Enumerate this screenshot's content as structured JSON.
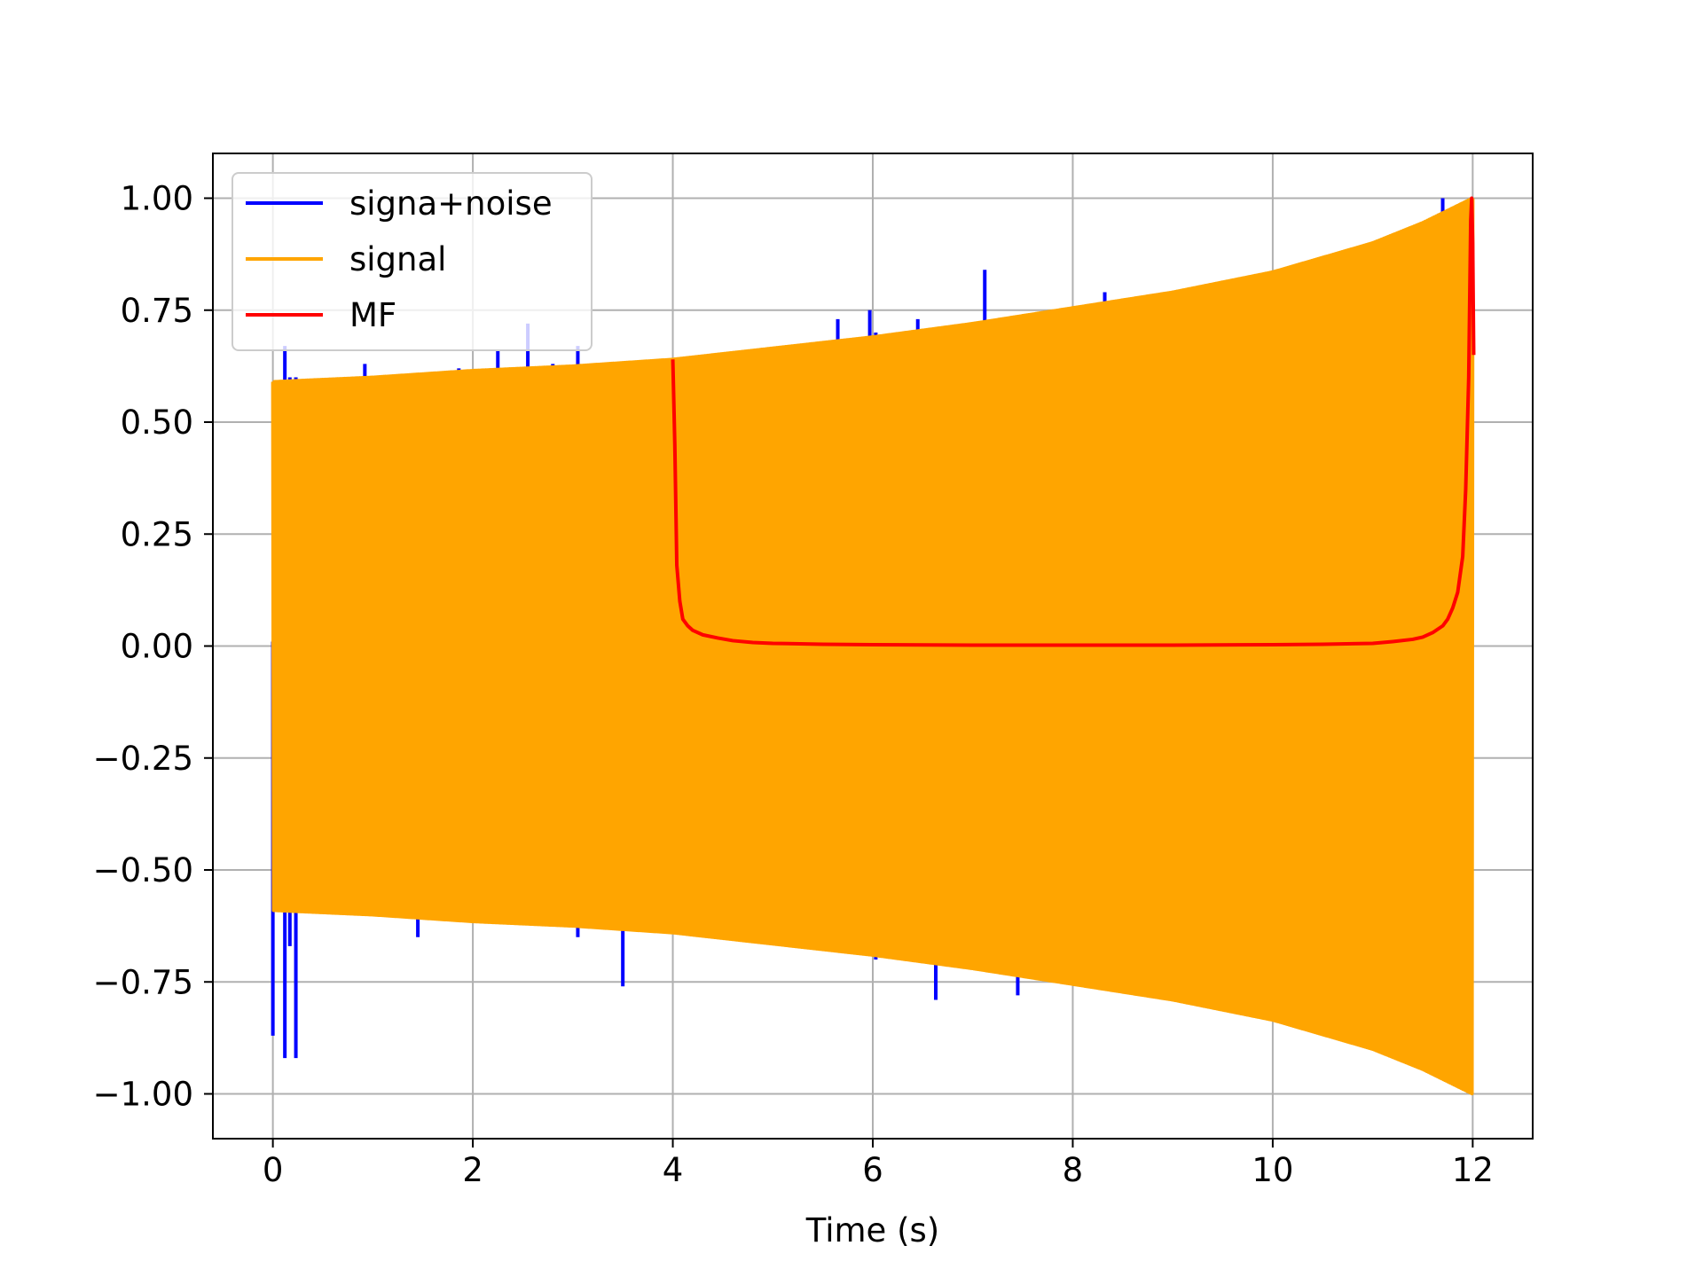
{
  "chart_data": {
    "type": "line",
    "title": "",
    "xlabel": "Time (s)",
    "ylabel": "",
    "xlim": [
      -0.6,
      12.6
    ],
    "ylim": [
      -1.1,
      1.1
    ],
    "grid": true,
    "legend_position": "top-left",
    "x_ticks": [
      0,
      2,
      4,
      6,
      8,
      10,
      12
    ],
    "x_tick_labels": [
      "0",
      "2",
      "4",
      "6",
      "8",
      "10",
      "12"
    ],
    "y_ticks": [
      1.0,
      0.75,
      0.5,
      0.25,
      0.0,
      -0.25,
      -0.5,
      -0.75,
      -1.0
    ],
    "y_tick_labels": [
      "1.00",
      "0.75",
      "0.50",
      "0.25",
      "0.00",
      "−0.25",
      "−0.50",
      "−0.75",
      "−1.00"
    ],
    "series": [
      {
        "name": "signa+noise",
        "color": "#0000ff",
        "spikes": [
          {
            "x": 0.0,
            "ymin": -0.87,
            "ymax": 0.01
          },
          {
            "x": 0.12,
            "ymin": -0.92,
            "ymax": 0.67
          },
          {
            "x": 0.17,
            "ymin": -0.67,
            "ymax": 0.6
          },
          {
            "x": 0.23,
            "ymin": -0.92,
            "ymax": 0.6
          },
          {
            "x": 0.92,
            "ymin": -0.6,
            "ymax": 0.63
          },
          {
            "x": 1.45,
            "ymin": -0.65,
            "ymax": 0.59
          },
          {
            "x": 1.86,
            "ymin": -0.6,
            "ymax": 0.62
          },
          {
            "x": 2.25,
            "ymin": -0.6,
            "ymax": 0.66
          },
          {
            "x": 2.55,
            "ymin": -0.6,
            "ymax": 0.72
          },
          {
            "x": 2.8,
            "ymin": -0.6,
            "ymax": 0.63
          },
          {
            "x": 3.05,
            "ymin": -0.65,
            "ymax": 0.67
          },
          {
            "x": 3.5,
            "ymin": -0.76,
            "ymax": 0.63
          },
          {
            "x": 5.65,
            "ymin": -0.66,
            "ymax": 0.73
          },
          {
            "x": 5.97,
            "ymin": -0.66,
            "ymax": 0.75
          },
          {
            "x": 6.03,
            "ymin": -0.7,
            "ymax": 0.7
          },
          {
            "x": 6.45,
            "ymin": -0.7,
            "ymax": 0.73
          },
          {
            "x": 6.63,
            "ymin": -0.79,
            "ymax": 0.69
          },
          {
            "x": 7.12,
            "ymin": -0.71,
            "ymax": 0.84
          },
          {
            "x": 7.45,
            "ymin": -0.78,
            "ymax": 0.71
          },
          {
            "x": 8.32,
            "ymin": -0.74,
            "ymax": 0.79
          },
          {
            "x": 11.7,
            "ymin": -0.9,
            "ymax": 1.0
          }
        ]
      },
      {
        "name": "signal",
        "color": "#ffa500",
        "envelope_t": [
          0,
          1,
          2,
          3,
          4,
          5,
          6,
          7,
          8,
          9,
          10,
          11,
          11.5,
          12
        ],
        "envelope_amplitude": [
          0.59,
          0.6,
          0.615,
          0.625,
          0.64,
          0.665,
          0.69,
          0.72,
          0.755,
          0.79,
          0.835,
          0.9,
          0.945,
          1.0
        ]
      },
      {
        "name": "MF",
        "color": "#ff0000",
        "x": [
          4.0,
          4.02,
          4.04,
          4.07,
          4.1,
          4.15,
          4.2,
          4.3,
          4.45,
          4.6,
          4.8,
          5.0,
          5.5,
          6.0,
          7.0,
          8.0,
          9.0,
          10.0,
          10.5,
          11.0,
          11.2,
          11.4,
          11.5,
          11.6,
          11.7,
          11.75,
          11.8,
          11.85,
          11.9,
          11.93,
          11.96,
          11.98,
          11.99,
          12.0,
          12.01
        ],
        "y": [
          0.64,
          0.45,
          0.18,
          0.1,
          0.06,
          0.045,
          0.035,
          0.025,
          0.018,
          0.012,
          0.008,
          0.006,
          0.004,
          0.003,
          0.002,
          0.002,
          0.002,
          0.003,
          0.004,
          0.006,
          0.01,
          0.015,
          0.02,
          0.03,
          0.045,
          0.06,
          0.085,
          0.12,
          0.2,
          0.35,
          0.6,
          0.95,
          1.0,
          0.9,
          0.65
        ]
      }
    ]
  }
}
